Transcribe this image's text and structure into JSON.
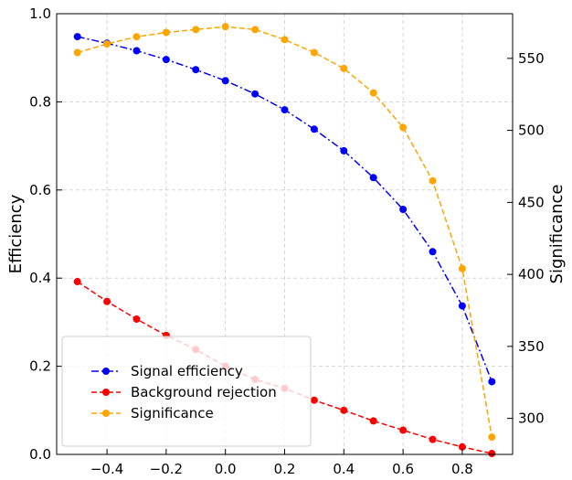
{
  "chart_data": {
    "type": "line",
    "x": [
      -0.5,
      -0.4,
      -0.3,
      -0.2,
      -0.1,
      0.0,
      0.1,
      0.2,
      0.3,
      0.4,
      0.5,
      0.6,
      0.7,
      0.8,
      0.9
    ],
    "xlim": [
      -0.57,
      0.97
    ],
    "xticks": [
      -0.4,
      -0.2,
      0.0,
      0.2,
      0.4,
      0.6,
      0.8
    ],
    "xtick_labels": [
      "−0.4",
      "−0.2",
      "0.0",
      "0.2",
      "0.4",
      "0.6",
      "0.8"
    ],
    "xlabel": "",
    "ylabel": "Efficiency",
    "ylim": [
      0,
      1.0
    ],
    "yticks": [
      0.0,
      0.2,
      0.4,
      0.6,
      0.8,
      1.0
    ],
    "ytick_labels": [
      "0.0",
      "0.2",
      "0.4",
      "0.6",
      "0.8",
      "1.0"
    ],
    "y2label": "Significance",
    "y2lim": [
      275,
      581
    ],
    "y2ticks": [
      300,
      350,
      400,
      450,
      500,
      550
    ],
    "y2tick_labels": [
      "300",
      "350",
      "400",
      "450",
      "500",
      "550"
    ],
    "grid": true,
    "legend_position": "lower-left",
    "series": [
      {
        "name": "Signal efficiency",
        "axis": "left",
        "color": "#0000ff",
        "linestyle": "dashdot",
        "values": [
          0.948,
          0.933,
          0.916,
          0.896,
          0.873,
          0.848,
          0.818,
          0.782,
          0.738,
          0.689,
          0.628,
          0.556,
          0.46,
          0.337,
          0.165
        ]
      },
      {
        "name": "Background rejection",
        "axis": "left",
        "color": "#ff0000",
        "linestyle": "dashed",
        "values": [
          0.392,
          0.347,
          0.307,
          0.27,
          0.238,
          0.2,
          0.17,
          0.15,
          0.123,
          0.1,
          0.076,
          0.055,
          0.034,
          0.017,
          0.002
        ]
      },
      {
        "name": "Significance",
        "axis": "right",
        "color": "#ffa500",
        "linestyle": "dashed",
        "values": [
          554,
          560,
          565,
          568,
          570,
          572,
          570,
          563,
          554,
          543,
          526,
          502,
          465,
          404,
          287
        ]
      }
    ]
  }
}
